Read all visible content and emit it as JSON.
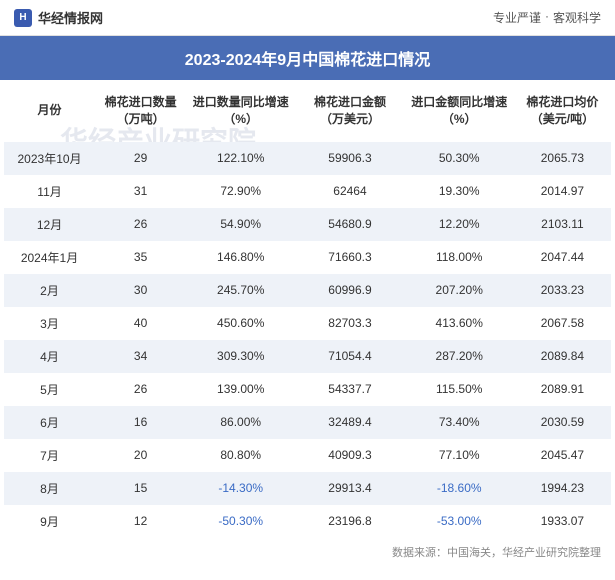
{
  "header": {
    "site_name": "华经情报网",
    "tagline_left": "专业严谨",
    "tagline_sep": "·",
    "tagline_right": "客观科学"
  },
  "title": "2023-2024年9月中国棉花进口情况",
  "watermark": "华经产业研究院",
  "table": {
    "columns": [
      "月份",
      "棉花进口数量\n（万吨）",
      "进口数量同比增速\n（%）",
      "棉花进口金额\n（万美元）",
      "进口金额同比增速\n（%）",
      "棉花进口均价\n（美元/吨）"
    ],
    "rows": [
      {
        "month": "2023年10月",
        "qty": "29",
        "qty_growth": "122.10%",
        "qty_neg": false,
        "value": "59906.3",
        "value_growth": "50.30%",
        "value_neg": false,
        "avg": "2065.73"
      },
      {
        "month": "11月",
        "qty": "31",
        "qty_growth": "72.90%",
        "qty_neg": false,
        "value": "62464",
        "value_growth": "19.30%",
        "value_neg": false,
        "avg": "2014.97"
      },
      {
        "month": "12月",
        "qty": "26",
        "qty_growth": "54.90%",
        "qty_neg": false,
        "value": "54680.9",
        "value_growth": "12.20%",
        "value_neg": false,
        "avg": "2103.11"
      },
      {
        "month": "2024年1月",
        "qty": "35",
        "qty_growth": "146.80%",
        "qty_neg": false,
        "value": "71660.3",
        "value_growth": "118.00%",
        "value_neg": false,
        "avg": "2047.44"
      },
      {
        "month": "2月",
        "qty": "30",
        "qty_growth": "245.70%",
        "qty_neg": false,
        "value": "60996.9",
        "value_growth": "207.20%",
        "value_neg": false,
        "avg": "2033.23"
      },
      {
        "month": "3月",
        "qty": "40",
        "qty_growth": "450.60%",
        "qty_neg": false,
        "value": "82703.3",
        "value_growth": "413.60%",
        "value_neg": false,
        "avg": "2067.58"
      },
      {
        "month": "4月",
        "qty": "34",
        "qty_growth": "309.30%",
        "qty_neg": false,
        "value": "71054.4",
        "value_growth": "287.20%",
        "value_neg": false,
        "avg": "2089.84"
      },
      {
        "month": "5月",
        "qty": "26",
        "qty_growth": "139.00%",
        "qty_neg": false,
        "value": "54337.7",
        "value_growth": "115.50%",
        "value_neg": false,
        "avg": "2089.91"
      },
      {
        "month": "6月",
        "qty": "16",
        "qty_growth": "86.00%",
        "qty_neg": false,
        "value": "32489.4",
        "value_growth": "73.40%",
        "value_neg": false,
        "avg": "2030.59"
      },
      {
        "month": "7月",
        "qty": "20",
        "qty_growth": "80.80%",
        "qty_neg": false,
        "value": "40909.3",
        "value_growth": "77.10%",
        "value_neg": false,
        "avg": "2045.47"
      },
      {
        "month": "8月",
        "qty": "15",
        "qty_growth": "-14.30%",
        "qty_neg": true,
        "value": "29913.4",
        "value_growth": "-18.60%",
        "value_neg": true,
        "avg": "1994.23"
      },
      {
        "month": "9月",
        "qty": "12",
        "qty_growth": "-50.30%",
        "qty_neg": true,
        "value": "23196.8",
        "value_growth": "-53.00%",
        "value_neg": true,
        "avg": "1933.07"
      }
    ]
  },
  "footer": "数据来源：中国海关，华经产业研究院整理",
  "colors": {
    "title_bg": "#4a6db5",
    "row_odd_bg": "#eef2f8",
    "row_even_bg": "#ffffff",
    "negative_text": "#3a6bc5",
    "watermark_color": "rgba(180,190,210,0.35)"
  }
}
